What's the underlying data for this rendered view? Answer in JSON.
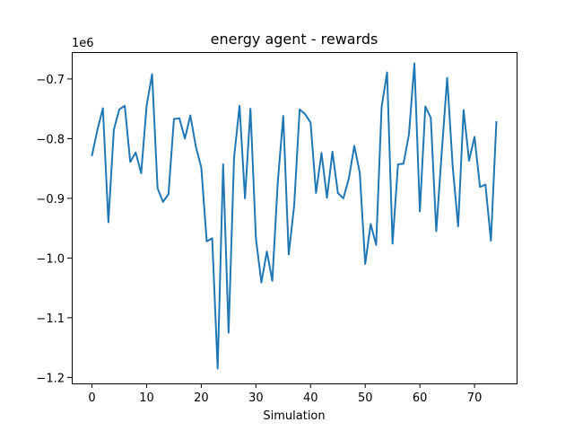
{
  "chart_data": {
    "type": "line",
    "title": "energy agent - rewards",
    "xlabel": "Simulation",
    "ylabel": "",
    "y_offset_label": "1e6",
    "x_ticks": [
      0,
      10,
      20,
      30,
      40,
      50,
      60,
      70
    ],
    "y_ticks": [
      -1.2,
      -1.1,
      -1.0,
      -0.9,
      -0.8,
      -0.7
    ],
    "y_tick_labels": [
      "−1.2",
      "−1.1",
      "−1.0",
      "−0.9",
      "−0.8",
      "−0.7"
    ],
    "xlim": [
      -3.7,
      77.7
    ],
    "ylim": [
      -1.21,
      -0.655
    ],
    "grid": false,
    "series": [
      {
        "color": "#1f77b4",
        "x": [
          0,
          1,
          2,
          3,
          4,
          5,
          6,
          7,
          8,
          9,
          10,
          11,
          12,
          13,
          14,
          15,
          16,
          17,
          18,
          19,
          20,
          21,
          22,
          23,
          24,
          25,
          26,
          27,
          28,
          29,
          30,
          31,
          32,
          33,
          34,
          35,
          36,
          37,
          38,
          39,
          40,
          41,
          42,
          43,
          44,
          45,
          46,
          47,
          48,
          49,
          50,
          51,
          52,
          53,
          54,
          55,
          56,
          57,
          58,
          59,
          60,
          61,
          62,
          63,
          64,
          65,
          66,
          67,
          68,
          69,
          70,
          71,
          72,
          73,
          74
        ],
        "y": [
          -0.828,
          -0.785,
          -0.749,
          -0.94,
          -0.785,
          -0.751,
          -0.745,
          -0.839,
          -0.823,
          -0.858,
          -0.745,
          -0.692,
          -0.883,
          -0.906,
          -0.893,
          -0.767,
          -0.766,
          -0.8,
          -0.761,
          -0.813,
          -0.848,
          -0.972,
          -0.967,
          -1.185,
          -0.843,
          -1.125,
          -0.832,
          -0.745,
          -0.9,
          -0.75,
          -0.967,
          -1.041,
          -0.989,
          -1.038,
          -0.873,
          -0.762,
          -0.994,
          -0.912,
          -0.751,
          -0.759,
          -0.773,
          -0.891,
          -0.824,
          -0.899,
          -0.822,
          -0.891,
          -0.9,
          -0.867,
          -0.812,
          -0.857,
          -1.01,
          -0.943,
          -0.978,
          -0.747,
          -0.689,
          -0.976,
          -0.843,
          -0.842,
          -0.793,
          -0.674,
          -0.922,
          -0.746,
          -0.765,
          -0.955,
          -0.823,
          -0.698,
          -0.846,
          -0.947,
          -0.752,
          -0.837,
          -0.797,
          -0.881,
          -0.877,
          -0.971,
          -0.772
        ]
      }
    ]
  }
}
